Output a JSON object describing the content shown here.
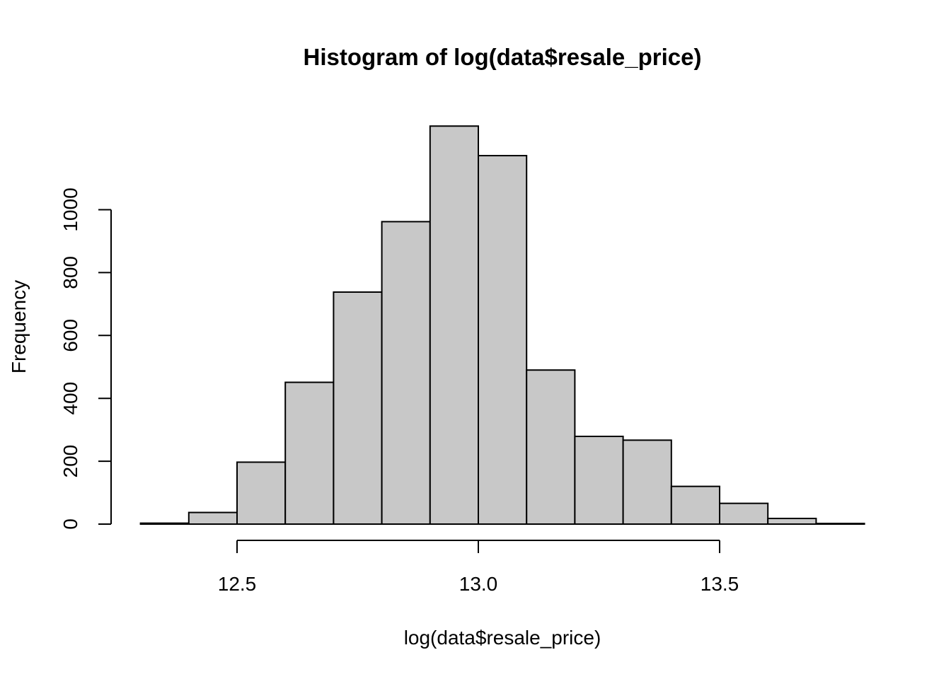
{
  "chart_data": {
    "type": "bar",
    "title": "Histogram of log(data$resale_price)",
    "xlabel": "log(data$resale_price)",
    "ylabel": "Frequency",
    "x_ticks": [
      12.5,
      13.0,
      13.5
    ],
    "x_tick_labels": [
      "12.5",
      "13.0",
      "13.5"
    ],
    "y_ticks": [
      0,
      200,
      400,
      600,
      800,
      1000
    ],
    "y_tick_labels": [
      "0",
      "200",
      "400",
      "600",
      "800",
      "1000"
    ],
    "xlim": [
      12.3,
      13.8
    ],
    "ylim": [
      0,
      1200
    ],
    "grid": false,
    "bins": [
      {
        "start": 12.3,
        "end": 12.4,
        "count": 3
      },
      {
        "start": 12.4,
        "end": 12.5,
        "count": 37
      },
      {
        "start": 12.5,
        "end": 12.6,
        "count": 197
      },
      {
        "start": 12.6,
        "end": 12.7,
        "count": 451
      },
      {
        "start": 12.7,
        "end": 12.8,
        "count": 738
      },
      {
        "start": 12.8,
        "end": 12.9,
        "count": 962
      },
      {
        "start": 12.9,
        "end": 13.0,
        "count": 1266
      },
      {
        "start": 13.0,
        "end": 13.1,
        "count": 1172
      },
      {
        "start": 13.1,
        "end": 13.2,
        "count": 490
      },
      {
        "start": 13.2,
        "end": 13.3,
        "count": 279
      },
      {
        "start": 13.3,
        "end": 13.4,
        "count": 267
      },
      {
        "start": 13.4,
        "end": 13.5,
        "count": 120
      },
      {
        "start": 13.5,
        "end": 13.6,
        "count": 66
      },
      {
        "start": 13.6,
        "end": 13.7,
        "count": 18
      },
      {
        "start": 13.7,
        "end": 13.8,
        "count": 2
      }
    ]
  }
}
